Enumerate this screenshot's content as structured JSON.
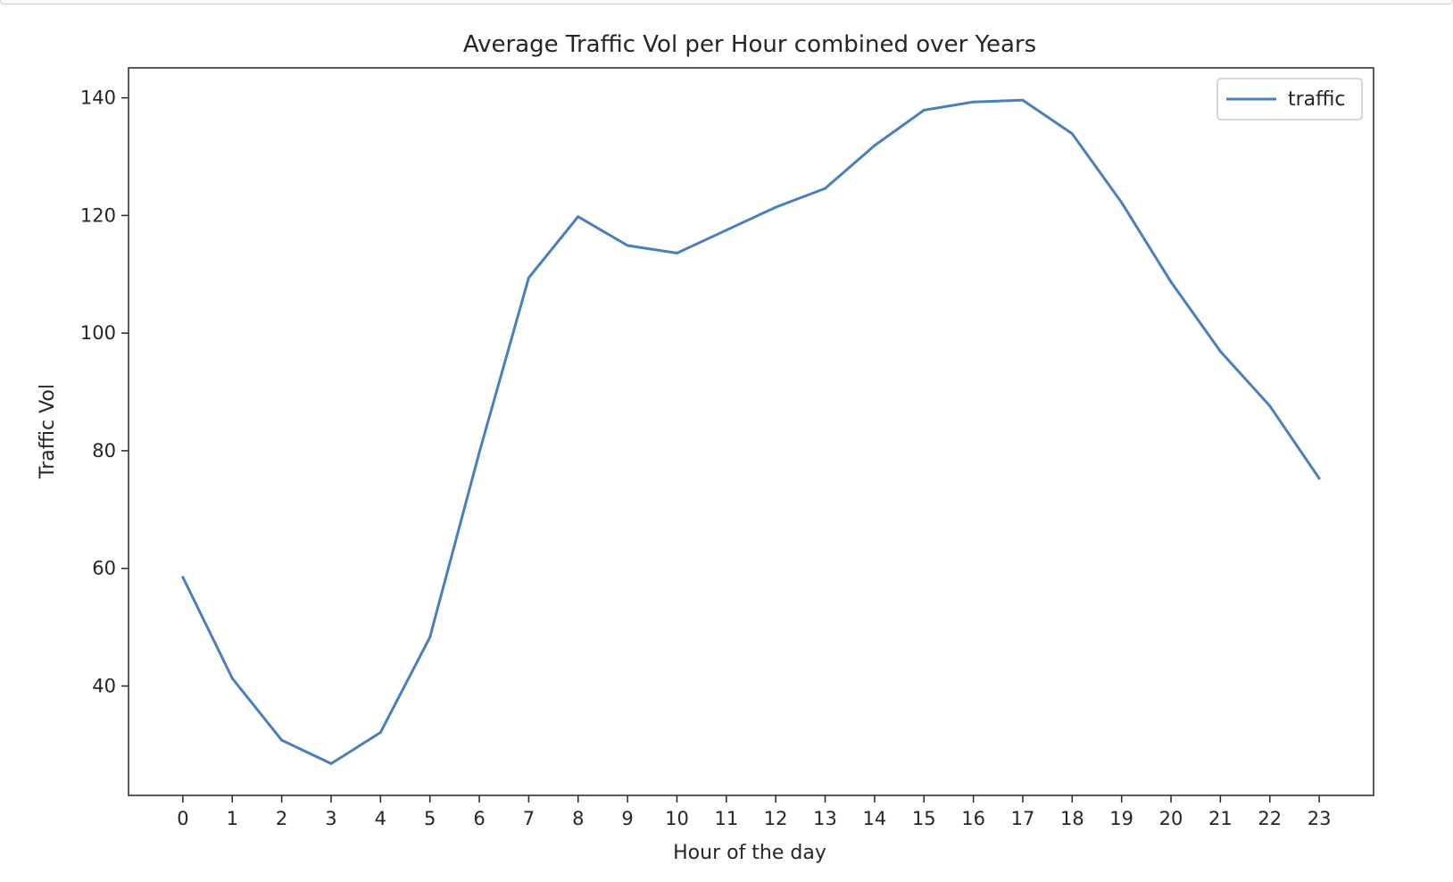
{
  "chart_data": {
    "type": "line",
    "title": "Average Traffic Vol per Hour combined over Years",
    "xlabel": "Hour of the day",
    "ylabel": "Traffic Vol",
    "x": [
      0,
      1,
      2,
      3,
      4,
      5,
      6,
      7,
      8,
      9,
      10,
      11,
      12,
      13,
      14,
      15,
      16,
      17,
      18,
      19,
      20,
      21,
      22,
      23
    ],
    "xticks": [
      "0",
      "1",
      "2",
      "3",
      "4",
      "5",
      "6",
      "7",
      "8",
      "9",
      "10",
      "11",
      "12",
      "13",
      "14",
      "15",
      "16",
      "17",
      "18",
      "19",
      "20",
      "21",
      "22",
      "23"
    ],
    "yticks": [
      40,
      60,
      80,
      100,
      120,
      140
    ],
    "xlim": [
      -1.1,
      24.1
    ],
    "ylim": [
      21.4,
      145.1
    ],
    "series": [
      {
        "name": "traffic",
        "color": "#4a7fbf",
        "values": [
          58.5,
          41.3,
          30.8,
          26.8,
          32.1,
          48.3,
          79.7,
          109.4,
          119.8,
          114.9,
          113.6,
          117.5,
          121.4,
          124.6,
          131.9,
          137.9,
          139.3,
          139.6,
          133.9,
          122.2,
          108.7,
          96.9,
          87.6,
          75.3
        ]
      }
    ],
    "legend": "top-right",
    "grid": false
  }
}
